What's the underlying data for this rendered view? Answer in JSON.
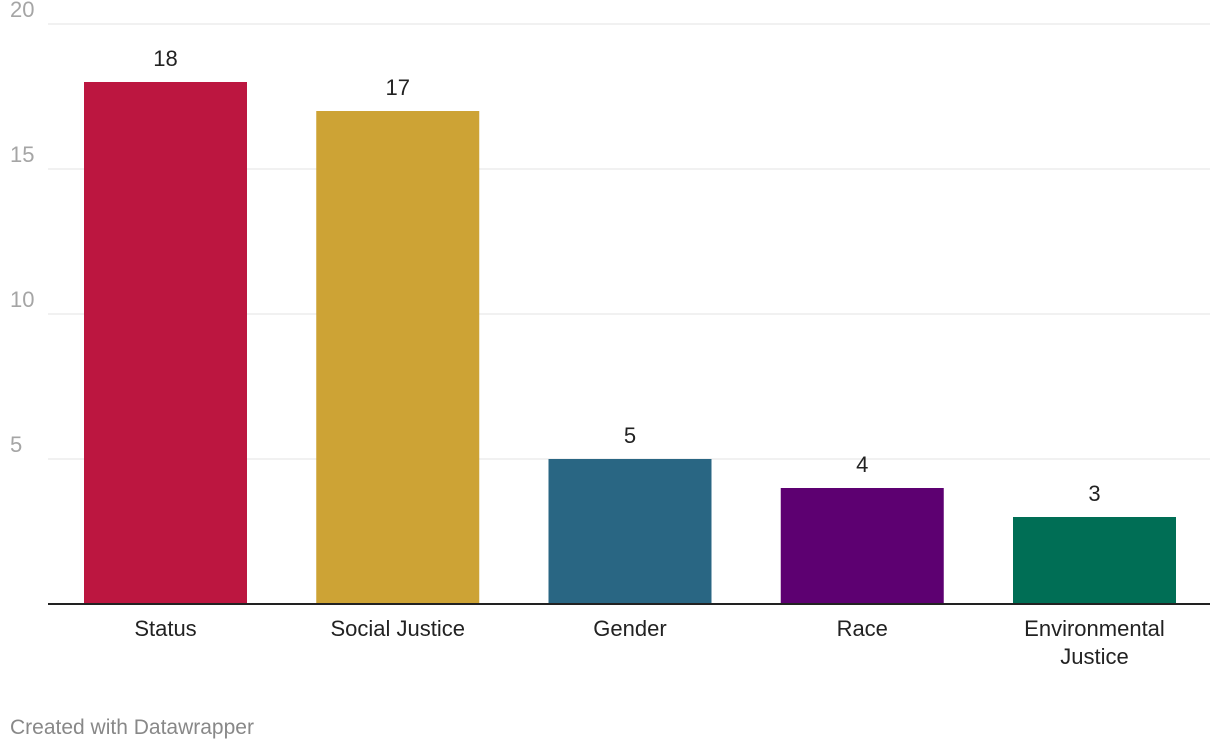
{
  "chart_data": {
    "type": "bar",
    "categories": [
      "Status",
      "Social Justice",
      "Gender",
      "Race",
      "Environmental Justice"
    ],
    "category_label_lines": [
      [
        "Status"
      ],
      [
        "Social Justice"
      ],
      [
        "Gender"
      ],
      [
        "Race"
      ],
      [
        "Environmental",
        "Justice"
      ]
    ],
    "values": [
      18,
      17,
      5,
      4,
      3
    ],
    "value_labels": [
      "18",
      "17",
      "5",
      "4",
      "3"
    ],
    "colors": [
      "#bc1640",
      "#cda335",
      "#296683",
      "#5d0071",
      "#006e55"
    ],
    "ylim": [
      0,
      20
    ],
    "yticks": [
      5,
      10,
      15,
      20
    ],
    "ytick_labels": [
      "5",
      "10",
      "15",
      "20"
    ],
    "grid": true,
    "legend": "none",
    "title": "",
    "xlabel": "",
    "ylabel": ""
  },
  "footer": {
    "credit": "Created with Datawrapper"
  }
}
